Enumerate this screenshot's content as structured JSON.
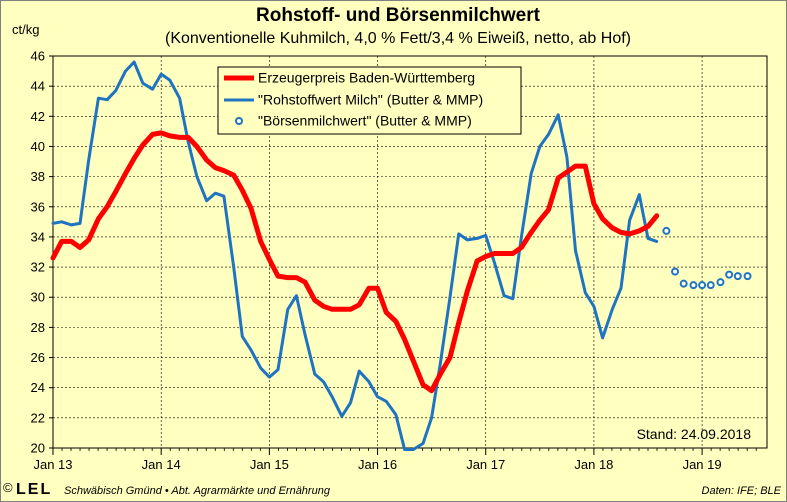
{
  "colors": {
    "background": "#ffffc0",
    "red_series": "#ff0000",
    "blue_series": "#1e74c0",
    "grid": "#000000"
  },
  "footer": {
    "copyright": "©",
    "logo_text": "LEL",
    "institution": "Schwäbisch Gmünd • Abt. Agrarmärkte und Ernährung",
    "source": "Daten: IFE; BLE"
  },
  "stand": "Stand: 24.09.2018",
  "chart_data": {
    "type": "line",
    "title": "Rohstoff- und Börsenmilchwert",
    "subtitle": "(Konventionelle Kuhmilch, 4,0 % Fett/3,4 % Eiweiß, netto, ab Hof)",
    "ylabel": "ct/kg",
    "ylim": [
      20,
      46
    ],
    "xlim": [
      2013.0,
      2019.6
    ],
    "yticks": [
      "20",
      "22",
      "24",
      "26",
      "28",
      "30",
      "32",
      "34",
      "36",
      "38",
      "40",
      "42",
      "44",
      "46"
    ],
    "xticks": [
      {
        "label": "Jan 13",
        "x": 2013.0
      },
      {
        "label": "Jan 14",
        "x": 2014.0
      },
      {
        "label": "Jan 15",
        "x": 2015.0
      },
      {
        "label": "Jan 16",
        "x": 2016.0
      },
      {
        "label": "Jan 17",
        "x": 2017.0
      },
      {
        "label": "Jan 18",
        "x": 2018.0
      },
      {
        "label": "Jan 19",
        "x": 2019.0
      }
    ],
    "grid": true,
    "legend_position": "top-center",
    "series": [
      {
        "name": "Erzeugerpreis Baden-Württemberg",
        "style": "thick-line",
        "color": "#ff0000",
        "points": [
          [
            2013.0,
            32.6
          ],
          [
            2013.08,
            33.7
          ],
          [
            2013.17,
            33.7
          ],
          [
            2013.25,
            33.3
          ],
          [
            2013.33,
            33.8
          ],
          [
            2013.42,
            35.2
          ],
          [
            2013.5,
            36.0
          ],
          [
            2013.58,
            37.0
          ],
          [
            2013.67,
            38.2
          ],
          [
            2013.75,
            39.2
          ],
          [
            2013.83,
            40.1
          ],
          [
            2013.92,
            40.8
          ],
          [
            2014.0,
            40.9
          ],
          [
            2014.08,
            40.7
          ],
          [
            2014.17,
            40.6
          ],
          [
            2014.25,
            40.6
          ],
          [
            2014.33,
            40.0
          ],
          [
            2014.42,
            39.1
          ],
          [
            2014.5,
            38.6
          ],
          [
            2014.58,
            38.4
          ],
          [
            2014.67,
            38.1
          ],
          [
            2014.75,
            37.1
          ],
          [
            2014.83,
            35.9
          ],
          [
            2014.92,
            33.7
          ],
          [
            2015.0,
            32.5
          ],
          [
            2015.08,
            31.4
          ],
          [
            2015.17,
            31.3
          ],
          [
            2015.25,
            31.3
          ],
          [
            2015.33,
            31.0
          ],
          [
            2015.42,
            29.8
          ],
          [
            2015.5,
            29.4
          ],
          [
            2015.58,
            29.2
          ],
          [
            2015.67,
            29.2
          ],
          [
            2015.75,
            29.2
          ],
          [
            2015.83,
            29.5
          ],
          [
            2015.92,
            30.6
          ],
          [
            2016.0,
            30.6
          ],
          [
            2016.08,
            29.0
          ],
          [
            2016.17,
            28.4
          ],
          [
            2016.25,
            27.2
          ],
          [
            2016.33,
            25.8
          ],
          [
            2016.42,
            24.2
          ],
          [
            2016.5,
            23.8
          ],
          [
            2016.58,
            24.9
          ],
          [
            2016.67,
            26.0
          ],
          [
            2016.75,
            28.3
          ],
          [
            2016.83,
            30.4
          ],
          [
            2016.92,
            32.4
          ],
          [
            2017.0,
            32.7
          ],
          [
            2017.08,
            32.9
          ],
          [
            2017.17,
            32.9
          ],
          [
            2017.25,
            32.9
          ],
          [
            2017.33,
            33.3
          ],
          [
            2017.42,
            34.3
          ],
          [
            2017.5,
            35.1
          ],
          [
            2017.58,
            35.8
          ],
          [
            2017.67,
            37.9
          ],
          [
            2017.75,
            38.3
          ],
          [
            2017.83,
            38.7
          ],
          [
            2017.92,
            38.7
          ],
          [
            2018.0,
            36.2
          ],
          [
            2018.08,
            35.2
          ],
          [
            2018.17,
            34.6
          ],
          [
            2018.25,
            34.3
          ],
          [
            2018.33,
            34.2
          ],
          [
            2018.42,
            34.4
          ],
          [
            2018.5,
            34.7
          ],
          [
            2018.58,
            35.4
          ]
        ]
      },
      {
        "name": "\"Rohstoffwert Milch\" (Butter & MMP)",
        "style": "line",
        "color": "#1e74c0",
        "points": [
          [
            2013.0,
            34.9
          ],
          [
            2013.08,
            35.0
          ],
          [
            2013.17,
            34.8
          ],
          [
            2013.25,
            34.9
          ],
          [
            2013.33,
            39.1
          ],
          [
            2013.42,
            43.2
          ],
          [
            2013.5,
            43.1
          ],
          [
            2013.58,
            43.7
          ],
          [
            2013.67,
            45.0
          ],
          [
            2013.75,
            45.6
          ],
          [
            2013.83,
            44.2
          ],
          [
            2013.92,
            43.8
          ],
          [
            2014.0,
            44.8
          ],
          [
            2014.08,
            44.4
          ],
          [
            2014.17,
            43.2
          ],
          [
            2014.25,
            40.3
          ],
          [
            2014.33,
            38.0
          ],
          [
            2014.42,
            36.4
          ],
          [
            2014.5,
            36.9
          ],
          [
            2014.58,
            36.7
          ],
          [
            2014.67,
            32.0
          ],
          [
            2014.75,
            27.4
          ],
          [
            2014.83,
            26.5
          ],
          [
            2014.92,
            25.3
          ],
          [
            2015.0,
            24.7
          ],
          [
            2015.08,
            25.2
          ],
          [
            2015.17,
            29.2
          ],
          [
            2015.25,
            30.1
          ],
          [
            2015.33,
            27.5
          ],
          [
            2015.42,
            24.9
          ],
          [
            2015.5,
            24.4
          ],
          [
            2015.58,
            23.4
          ],
          [
            2015.67,
            22.1
          ],
          [
            2015.75,
            23.0
          ],
          [
            2015.83,
            25.1
          ],
          [
            2015.92,
            24.4
          ],
          [
            2016.0,
            23.4
          ],
          [
            2016.08,
            23.1
          ],
          [
            2016.17,
            22.2
          ],
          [
            2016.25,
            19.9
          ],
          [
            2016.33,
            19.9
          ],
          [
            2016.42,
            20.3
          ],
          [
            2016.5,
            22.0
          ],
          [
            2016.58,
            25.6
          ],
          [
            2016.67,
            30.0
          ],
          [
            2016.75,
            34.2
          ],
          [
            2016.83,
            33.8
          ],
          [
            2016.92,
            33.9
          ],
          [
            2017.0,
            34.1
          ],
          [
            2017.08,
            32.3
          ],
          [
            2017.17,
            30.1
          ],
          [
            2017.25,
            29.9
          ],
          [
            2017.33,
            34.0
          ],
          [
            2017.42,
            38.2
          ],
          [
            2017.5,
            40.0
          ],
          [
            2017.58,
            40.8
          ],
          [
            2017.67,
            42.1
          ],
          [
            2017.75,
            39.3
          ],
          [
            2017.83,
            33.1
          ],
          [
            2017.92,
            30.3
          ],
          [
            2018.0,
            29.4
          ],
          [
            2018.08,
            27.3
          ],
          [
            2018.17,
            29.2
          ],
          [
            2018.25,
            30.6
          ],
          [
            2018.33,
            35.1
          ],
          [
            2018.42,
            36.8
          ],
          [
            2018.5,
            33.9
          ],
          [
            2018.58,
            33.7
          ]
        ]
      },
      {
        "name": "\"Börsenmilchwert\" (Butter & MMP)",
        "style": "markers",
        "color": "#1e74c0",
        "points": [
          [
            2018.67,
            34.4
          ],
          [
            2018.75,
            31.7
          ],
          [
            2018.83,
            30.9
          ],
          [
            2018.92,
            30.8
          ],
          [
            2019.0,
            30.8
          ],
          [
            2019.08,
            30.8
          ],
          [
            2019.17,
            31.0
          ],
          [
            2019.25,
            31.5
          ],
          [
            2019.33,
            31.4
          ],
          [
            2019.42,
            31.4
          ]
        ]
      }
    ]
  }
}
